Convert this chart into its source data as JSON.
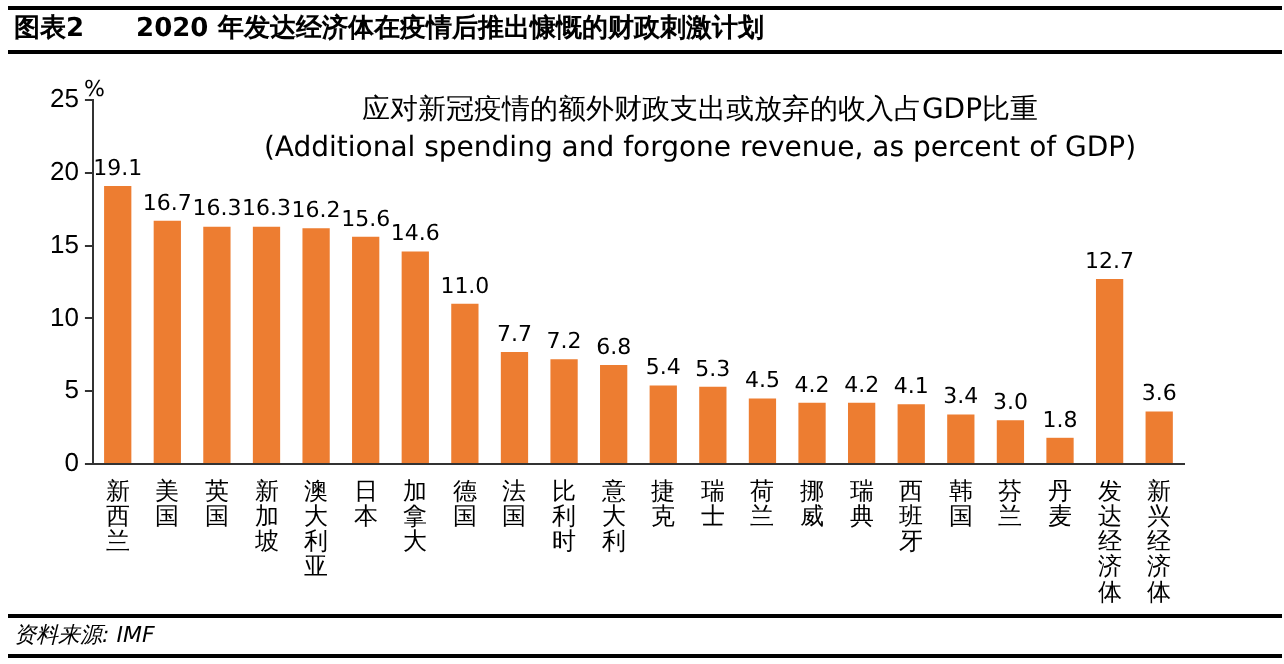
{
  "chart_data": {
    "type": "bar",
    "title": "图表2　　2020 年发达经济体在疫情后推出慷慨的财政刺激计划",
    "subtitle": "应对新冠疫情的额外财政支出或放弃的收入占GDP比重",
    "ylabel": "%",
    "annotations": [
      "(Additional spending and forgone revenue,  as percent of GDP)",
      "资料来源: IMF"
    ],
    "categories": [
      "新西兰",
      "美国",
      "英国",
      "新加坡",
      "澳大利亚",
      "日本",
      "加拿大",
      "德国",
      "法国",
      "比利时",
      "意大利",
      "捷克",
      "瑞士",
      "荷兰",
      "挪威",
      "瑞典",
      "西班牙",
      "韩国",
      "芬兰",
      "丹麦",
      "发达经济体",
      "新兴经济体"
    ],
    "values": [
      19.1,
      16.7,
      16.3,
      16.3,
      16.2,
      15.6,
      14.6,
      11.0,
      7.7,
      7.2,
      6.8,
      5.4,
      5.3,
      4.5,
      4.2,
      4.2,
      4.1,
      3.4,
      3.0,
      1.8,
      12.7,
      3.6
    ],
    "value_labels": [
      "19.1",
      "16.7",
      "16.3",
      "16.3",
      "16.2",
      "15.6",
      "14.6",
      "11.0",
      "7.7",
      "7.2",
      "6.8",
      "5.4",
      "5.3",
      "4.5",
      "4.2",
      "4.2",
      "4.1",
      "3.4",
      "3.0",
      "1.8",
      "12.7",
      "3.6"
    ],
    "color": "#ed7d31",
    "ylim": [
      0,
      25
    ],
    "yticks": [
      0,
      5,
      10,
      15,
      20,
      25
    ],
    "grid": false,
    "legend": false
  }
}
